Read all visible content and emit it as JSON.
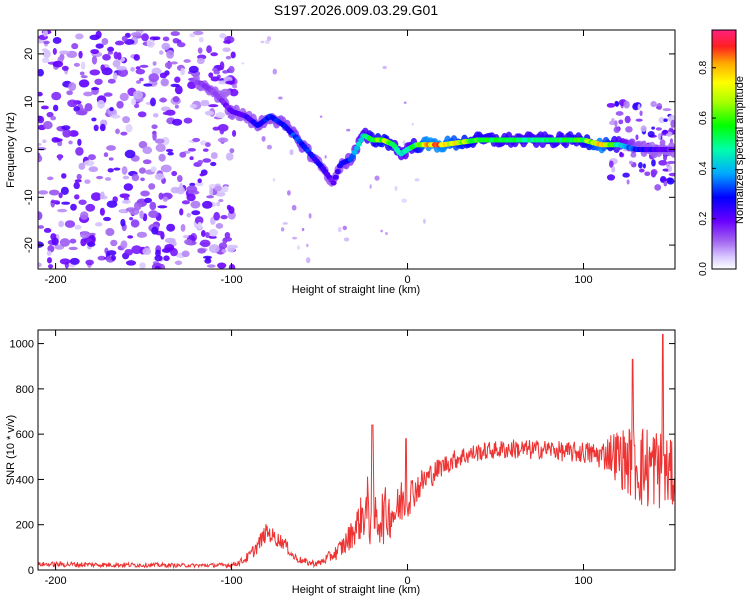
{
  "title": "S197.2026.009.03.29.G01",
  "chart_data": [
    {
      "type": "heatmap",
      "xlabel": "Height of straight line (km)",
      "ylabel": "Frequency (Hz)",
      "xlim": [
        -210,
        152
      ],
      "ylim": [
        -25,
        25
      ],
      "xticks": [
        -200,
        -100,
        0,
        100
      ],
      "yticks": [
        -20,
        -10,
        0,
        10,
        20
      ],
      "xtick_labels": [
        "-200",
        "-100",
        "0",
        "100"
      ],
      "ytick_labels": [
        "-20",
        "-10",
        "0",
        "10",
        "20"
      ],
      "colorbar": {
        "label": "Normalized spectral amplitude",
        "range": [
          0,
          0.95
        ],
        "ticks": [
          0.0,
          0.2,
          0.4,
          0.6,
          0.8
        ],
        "tick_labels": [
          "0.0",
          "0.2",
          "0.4",
          "0.6",
          "0.8"
        ]
      },
      "ridge": {
        "x": [
          -118,
          -110,
          -100,
          -92,
          -85,
          -78,
          -70,
          -62,
          -55,
          -48,
          -42,
          -38,
          -32,
          -25,
          -20,
          -14,
          -8,
          -4,
          0,
          5,
          10,
          20,
          40,
          60,
          80,
          100,
          110,
          120,
          130,
          140,
          150
        ],
        "freq": [
          14,
          12,
          8,
          7,
          5,
          7,
          5,
          2,
          -1,
          -4,
          -7,
          -3,
          -2,
          3,
          2,
          2,
          1,
          -1,
          0,
          1,
          1,
          1,
          2,
          2,
          2,
          2,
          1,
          1,
          0,
          0,
          0
        ],
        "amplitude": [
          0.15,
          0.15,
          0.2,
          0.25,
          0.3,
          0.3,
          0.3,
          0.35,
          0.3,
          0.25,
          0.2,
          0.3,
          0.35,
          0.5,
          0.6,
          0.7,
          0.55,
          0.5,
          0.5,
          0.6,
          0.85,
          0.85,
          0.6,
          0.55,
          0.55,
          0.6,
          0.85,
          0.5,
          0.3,
          0.25,
          0.2
        ]
      }
    },
    {
      "type": "line",
      "xlabel": "Height of straight line (km)",
      "ylabel": "SNR (10 * v/v)",
      "xlim": [
        -210,
        152
      ],
      "ylim": [
        0,
        1060
      ],
      "xticks": [
        -200,
        -100,
        0,
        100
      ],
      "yticks": [
        0,
        200,
        400,
        600,
        800,
        1000
      ],
      "xtick_labels": [
        "-200",
        "-100",
        "0",
        "100"
      ],
      "ytick_labels": [
        "0",
        "200",
        "400",
        "600",
        "800",
        "1000"
      ],
      "series": [
        {
          "name": "SNR",
          "color": "#ee3333",
          "x": [
            -210,
            -200,
            -150,
            -120,
            -100,
            -95,
            -90,
            -85,
            -80,
            -75,
            -70,
            -65,
            -60,
            -55,
            -50,
            -45,
            -40,
            -35,
            -30,
            -25,
            -22,
            -18,
            -14,
            -10,
            -6,
            -2,
            0,
            5,
            10,
            20,
            30,
            40,
            50,
            60,
            70,
            80,
            90,
            100,
            110,
            115,
            120,
            125,
            130,
            135,
            140,
            145,
            150,
            152
          ],
          "mean": [
            25,
            25,
            22,
            20,
            22,
            35,
            60,
            110,
            170,
            140,
            120,
            60,
            40,
            30,
            30,
            55,
            80,
            120,
            180,
            250,
            260,
            220,
            240,
            250,
            260,
            330,
            320,
            360,
            400,
            460,
            500,
            520,
            530,
            535,
            530,
            535,
            520,
            520,
            505,
            520,
            500,
            480,
            470,
            450,
            460,
            440,
            420,
            420
          ],
          "spread": [
            10,
            12,
            10,
            8,
            10,
            15,
            25,
            35,
            40,
            35,
            30,
            20,
            15,
            15,
            15,
            25,
            35,
            55,
            70,
            110,
            180,
            110,
            130,
            110,
            100,
            120,
            90,
            70,
            60,
            45,
            45,
            40,
            40,
            45,
            45,
            40,
            45,
            50,
            60,
            90,
            130,
            150,
            180,
            200,
            190,
            180,
            150,
            150
          ],
          "peaks": [
            {
              "x": -20,
              "y": 640
            },
            {
              "x": -1,
              "y": 580
            },
            {
              "x": 128,
              "y": 930
            },
            {
              "x": 145,
              "y": 1040
            }
          ]
        }
      ]
    }
  ]
}
